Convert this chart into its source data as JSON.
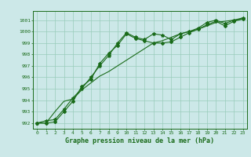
{
  "x": [
    0,
    1,
    2,
    3,
    4,
    5,
    6,
    7,
    8,
    9,
    10,
    11,
    12,
    13,
    14,
    15,
    16,
    17,
    18,
    19,
    20,
    21,
    22,
    23
  ],
  "line1": [
    992.0,
    992.2,
    992.3,
    993.2,
    994.2,
    995.0,
    996.0,
    997.0,
    997.9,
    999.0,
    999.9,
    999.5,
    999.3,
    999.8,
    999.7,
    999.3,
    999.8,
    1000.0,
    1000.3,
    1000.8,
    1001.0,
    1000.7,
    1001.0,
    1001.2
  ],
  "line2": [
    992.0,
    992.0,
    992.1,
    993.0,
    993.9,
    995.2,
    995.8,
    997.2,
    998.1,
    998.8,
    999.8,
    999.4,
    999.2,
    999.0,
    999.0,
    999.1,
    999.5,
    999.9,
    1000.2,
    1000.6,
    1000.9,
    1000.5,
    1000.9,
    1001.1
  ],
  "line3": [
    992.0,
    992.0,
    993.0,
    993.9,
    994.1,
    994.9,
    995.5,
    996.1,
    996.5,
    997.0,
    997.5,
    998.0,
    998.5,
    999.0,
    999.2,
    999.5,
    999.8,
    1000.0,
    1000.2,
    1000.5,
    1000.8,
    1000.9,
    1001.0,
    1001.1
  ],
  "line_color": "#1a6b1a",
  "marker_color": "#1a6b1a",
  "bg_color": "#cce8e8",
  "grid_color": "#99ccbb",
  "xlabel": "Graphe pression niveau de la mer (hPa)",
  "ylim_min": 991.5,
  "ylim_max": 1001.8,
  "xlim_min": -0.5,
  "xlim_max": 23.5,
  "yticks": [
    992,
    993,
    994,
    995,
    996,
    997,
    998,
    999,
    1000,
    1001
  ],
  "xticks": [
    0,
    1,
    2,
    3,
    4,
    5,
    6,
    7,
    8,
    9,
    10,
    11,
    12,
    13,
    14,
    15,
    16,
    17,
    18,
    19,
    20,
    21,
    22,
    23
  ],
  "tick_fontsize": 4.5,
  "xlabel_fontsize": 6.0
}
